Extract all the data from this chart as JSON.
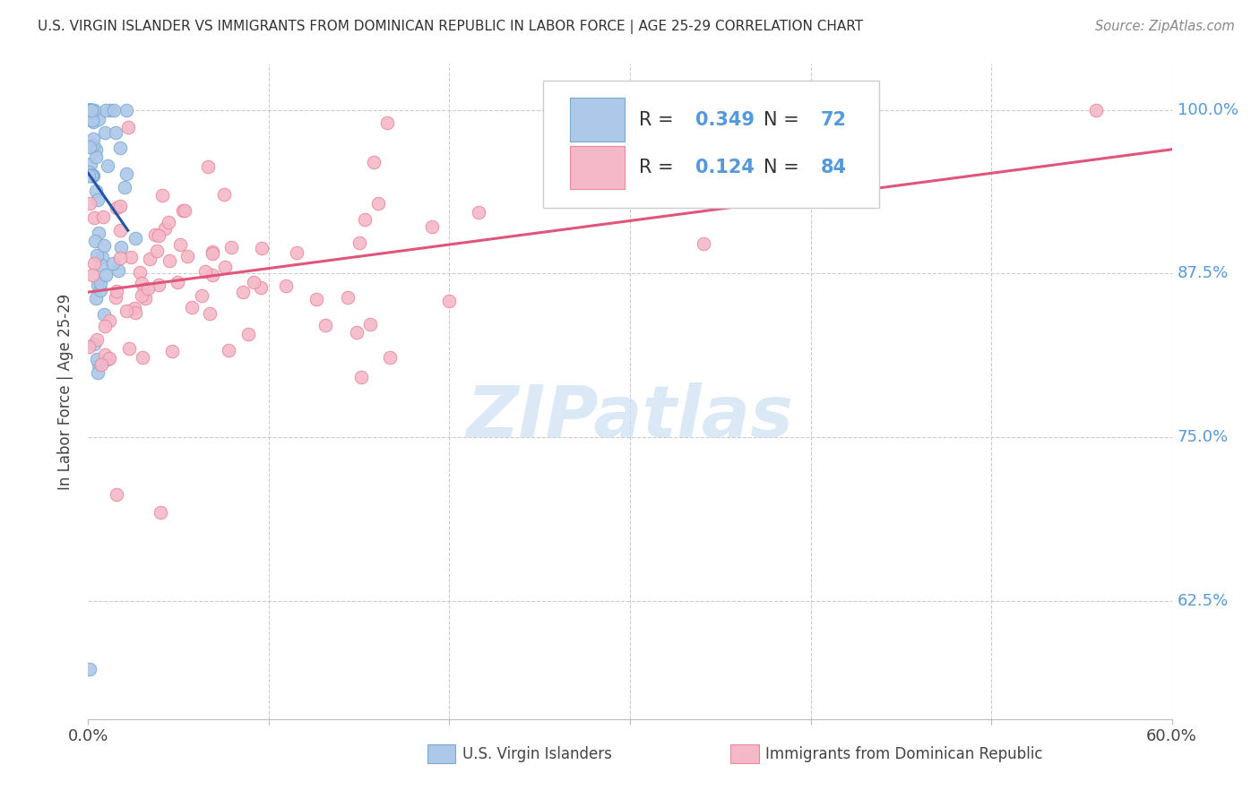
{
  "title": "U.S. VIRGIN ISLANDER VS IMMIGRANTS FROM DOMINICAN REPUBLIC IN LABOR FORCE | AGE 25-29 CORRELATION CHART",
  "source": "Source: ZipAtlas.com",
  "ylabel": "In Labor Force | Age 25-29",
  "xlim": [
    0.0,
    0.6
  ],
  "ylim": [
    0.535,
    1.035
  ],
  "xticks": [
    0.0,
    0.1,
    0.2,
    0.3,
    0.4,
    0.5,
    0.6
  ],
  "xticklabels_left": "0.0%",
  "xticklabels_right": "60.0%",
  "yticks": [
    0.625,
    0.75,
    0.875,
    1.0
  ],
  "yticklabels": [
    "62.5%",
    "75.0%",
    "87.5%",
    "100.0%"
  ],
  "blue_R": 0.349,
  "blue_N": 72,
  "pink_R": 0.124,
  "pink_N": 84,
  "blue_color": "#adc8e8",
  "pink_color": "#f5b8c8",
  "blue_edge_color": "#7aaad0",
  "pink_edge_color": "#e8889a",
  "blue_line_color": "#2255aa",
  "pink_line_color": "#e0557a",
  "ytick_color": "#5599dd",
  "xtick_color": "#444444",
  "legend_label_blue": "U.S. Virgin Islanders",
  "legend_label_pink": "Immigrants from Dominican Republic",
  "watermark": "ZIPatlas",
  "watermark_color": "#cce0f5",
  "grid_color": "#cccccc",
  "title_color": "#333333",
  "source_color": "#888888"
}
